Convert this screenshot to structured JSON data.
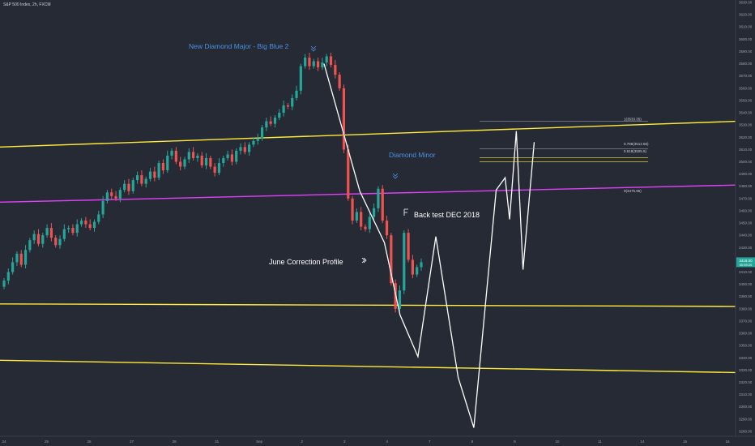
{
  "header": {
    "symbol": "S&P 500 Index, 2h, FXCM"
  },
  "colors": {
    "background": "#262a35",
    "up": "#26a69a",
    "down": "#ef5350",
    "yellow": "#ffeb3b",
    "magenta": "#e040fb",
    "projection": "#ffffff",
    "label_blue": "#4a90e2",
    "price_tag": "#26a69a"
  },
  "chart_data": {
    "type": "candlestick",
    "y_axis_ticks": [
      3630,
      3620,
      3610,
      3600,
      3590,
      3580,
      3570,
      3560,
      3550,
      3540,
      3530,
      3520,
      3510,
      3500,
      3490,
      3480,
      3470,
      3460,
      3450,
      3440,
      3430,
      3420,
      3410,
      3400,
      3390,
      3380,
      3370,
      3360,
      3350,
      3340,
      3330,
      3320,
      3310,
      3300,
      3290,
      3280
    ],
    "ylim": [
      3276,
      3632
    ],
    "x_axis_ticks": [
      "24",
      "25",
      "26",
      "27",
      "28",
      "31",
      "Sep",
      "2",
      "3",
      "4",
      "7",
      "8",
      "9",
      "10",
      "11",
      "14",
      "15",
      "16"
    ],
    "last_price": "3418.00",
    "price_tag_sub": "00:59:20",
    "candles_close": [
      3403,
      3410,
      3418,
      3425,
      3416,
      3428,
      3436,
      3441,
      3433,
      3440,
      3446,
      3438,
      3432,
      3437,
      3445,
      3446,
      3442,
      3449,
      3452,
      3449,
      3446,
      3451,
      3457,
      3468,
      3475,
      3472,
      3470,
      3477,
      3482,
      3476,
      3485,
      3489,
      3482,
      3486,
      3492,
      3487,
      3499,
      3493,
      3505,
      3509,
      3500,
      3496,
      3502,
      3508,
      3503,
      3505,
      3497,
      3503,
      3496,
      3491,
      3499,
      3503,
      3506,
      3500,
      3509,
      3512,
      3508,
      3514,
      3517,
      3519,
      3528,
      3533,
      3531,
      3536,
      3540,
      3546,
      3545,
      3552,
      3558,
      3578,
      3585,
      3578,
      3582,
      3577,
      3581,
      3586,
      3579,
      3571,
      3560,
      3510,
      3470,
      3452,
      3459,
      3447,
      3445,
      3455,
      3462,
      3478,
      3452,
      3440,
      3401,
      3380,
      3395,
      3442,
      3420,
      3408,
      3414,
      3418
    ],
    "annotations": [
      {
        "text": "New Diamond Major - Big Blue 2",
        "color": "label_blue"
      },
      {
        "text": "Diamond Minor",
        "color": "label_blue"
      },
      {
        "text": "Back test DEC 2018",
        "color": "projection"
      },
      {
        "text": "June Correction Profile",
        "color": "projection"
      }
    ],
    "fib_labels": [
      "1(3533.35)",
      "0.786(3512.66)",
      "0.618(3505.5)",
      "0(3475.95)"
    ],
    "trendlines": [
      {
        "color": "yellow",
        "from": [
          0,
          3512
        ],
        "to": [
          1,
          3533
        ]
      },
      {
        "color": "magenta",
        "from": [
          0,
          3467
        ],
        "to": [
          1,
          3481
        ]
      },
      {
        "color": "yellow",
        "from": [
          0,
          3384
        ],
        "to": [
          1,
          3382
        ]
      },
      {
        "color": "yellow",
        "from": [
          0,
          3338
        ],
        "to": [
          1,
          3328
        ]
      }
    ],
    "projection_path": [
      [
        0.0,
        3580
      ],
      [
        0.16,
        3476
      ],
      [
        0.27,
        3434
      ],
      [
        0.34,
        3375
      ],
      [
        0.42,
        3341
      ],
      [
        0.5,
        3439
      ],
      [
        0.6,
        3324
      ],
      [
        0.67,
        3283
      ],
      [
        0.77,
        3477
      ],
      [
        0.81,
        3487
      ],
      [
        0.83,
        3453
      ],
      [
        0.86,
        3525
      ],
      [
        0.89,
        3412
      ],
      [
        0.94,
        3516
      ]
    ]
  }
}
